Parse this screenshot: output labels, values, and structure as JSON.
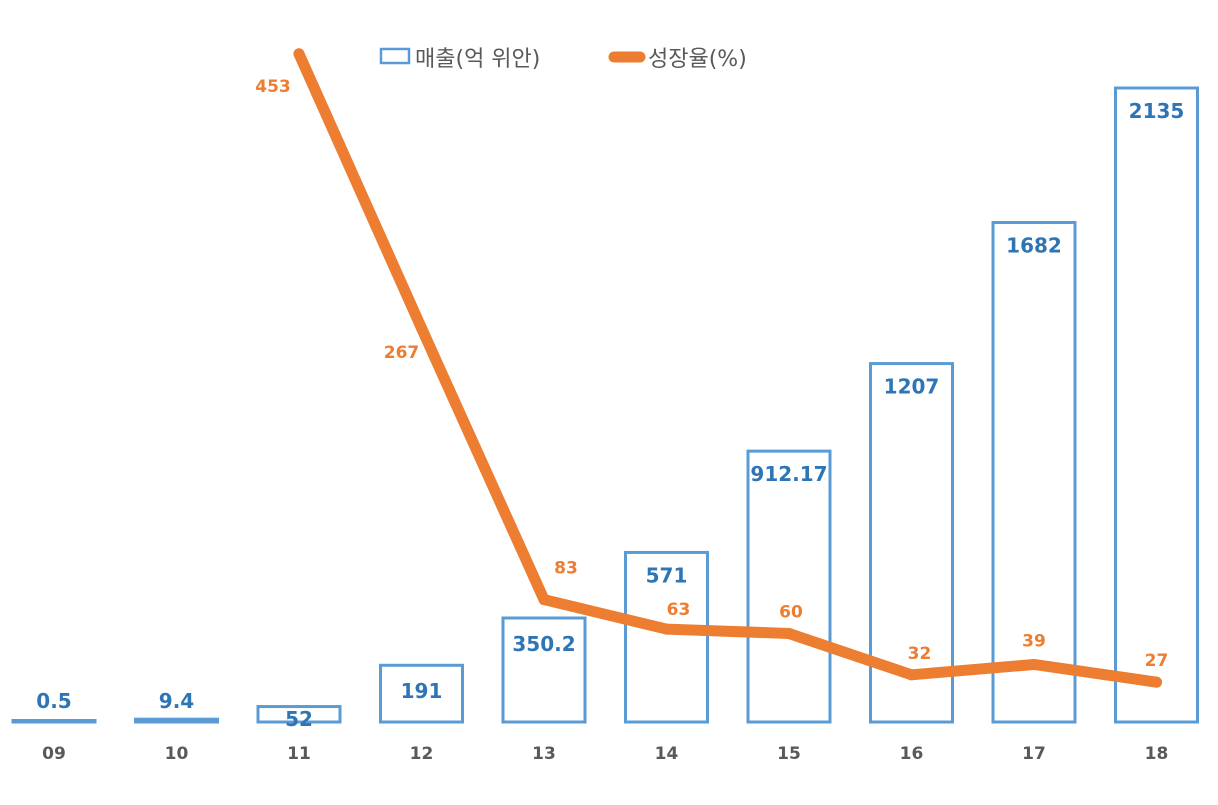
{
  "chart_data": {
    "type": "bar",
    "categories": [
      "09",
      "10",
      "11",
      "12",
      "13",
      "14",
      "15",
      "16",
      "17",
      "18"
    ],
    "series": [
      {
        "name": "매출(억 위안)",
        "kind": "bar",
        "values": [
          0.5,
          9.4,
          52,
          191,
          350.2,
          571,
          912.17,
          1207,
          1682,
          2135
        ],
        "labels": [
          "0.5",
          "9.4",
          "52",
          "191",
          "350.2",
          "571",
          "912.17",
          "1207",
          "1682",
          "2135"
        ],
        "color": "#5b9bd5",
        "label_color": "#2e75b6"
      },
      {
        "name": "성장율(%)",
        "kind": "line",
        "x": [
          "11",
          "12",
          "13",
          "14",
          "15",
          "16",
          "17",
          "18"
        ],
        "values": [
          453,
          267,
          83,
          63,
          60,
          32,
          39,
          27
        ],
        "labels": [
          "453",
          "267",
          "83",
          "63",
          "60",
          "32",
          "39",
          "27"
        ],
        "color": "#ed7d31"
      }
    ],
    "bar_axis_range": [
      0,
      2250
    ],
    "line_axis_range": [
      0,
      480
    ],
    "grid": false,
    "legend": "top-center"
  }
}
